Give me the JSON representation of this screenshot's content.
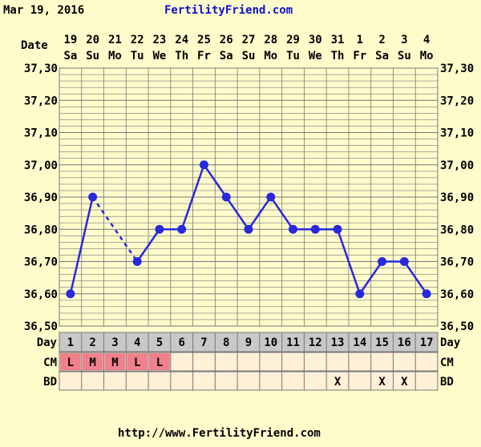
{
  "header": {
    "date": "Mar 19, 2016",
    "site": "FertilityFriend.com"
  },
  "footer": {
    "url": "http://www.FertilityFriend.com"
  },
  "row_labels": {
    "date": "Date",
    "day": "Day",
    "cm": "CM",
    "bd": "BD"
  },
  "colors": {
    "line": "#2828dd",
    "grid": "#777777",
    "day_row": "#c8c8c8",
    "cm_mark": "#f0808c",
    "row_bg": "#fff0d8",
    "site": "#1010d0"
  },
  "chart_data": {
    "type": "line",
    "y_ticks": [
      "37,30",
      "37,20",
      "37,10",
      "37,00",
      "36,90",
      "36,80",
      "36,70",
      "36,60",
      "36,50"
    ],
    "ylim": [
      36.5,
      37.3
    ],
    "dates": [
      "19",
      "20",
      "21",
      "22",
      "23",
      "24",
      "25",
      "26",
      "27",
      "28",
      "29",
      "30",
      "31",
      "1",
      "2",
      "3",
      "4"
    ],
    "weekdays": [
      "Sa",
      "Su",
      "Mo",
      "Tu",
      "We",
      "Th",
      "Fr",
      "Sa",
      "Su",
      "Mo",
      "Tu",
      "We",
      "Th",
      "Fr",
      "Sa",
      "Su",
      "Mo"
    ],
    "days": [
      1,
      2,
      3,
      4,
      5,
      6,
      7,
      8,
      9,
      10,
      11,
      12,
      13,
      14,
      15,
      16,
      17
    ],
    "temps": [
      36.6,
      36.9,
      null,
      36.7,
      36.8,
      36.8,
      37.0,
      36.9,
      36.8,
      36.9,
      36.8,
      36.8,
      36.8,
      36.6,
      36.7,
      36.7,
      36.6
    ],
    "cm": [
      "L",
      "M",
      "M",
      "L",
      "L",
      "",
      "",
      "",
      "",
      "",
      "",
      "",
      "",
      "",
      "",
      "",
      ""
    ],
    "bd": [
      "",
      "",
      "",
      "",
      "",
      "",
      "",
      "",
      "",
      "",
      "",
      "",
      "X",
      "",
      "X",
      "X",
      ""
    ]
  }
}
